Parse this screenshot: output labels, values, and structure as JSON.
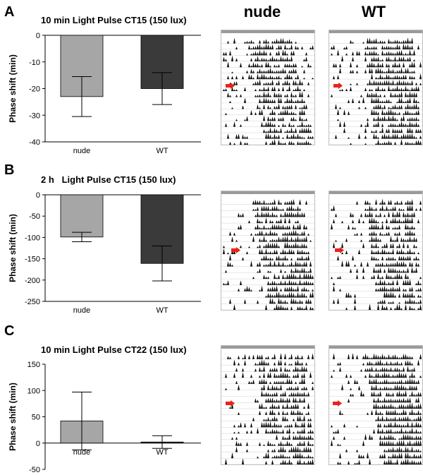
{
  "columns": {
    "nude": "nude",
    "wt": "WT"
  },
  "colors": {
    "nude_bar": "#a6a6a6",
    "wt_bar": "#3a3a3a",
    "arrow": "#e8231b",
    "actogram_bar": "#9a9a9a"
  },
  "chart_data": [
    {
      "panel": "A",
      "type": "bar",
      "title": "10 min Light Pulse CT15 (150 lux)",
      "ylabel": "Phase shift (min)",
      "xlabel": "",
      "categories": [
        "nude",
        "WT"
      ],
      "values": [
        -23,
        -20
      ],
      "errors": [
        7.5,
        6
      ],
      "ylim": [
        -40,
        0
      ],
      "yticks": [
        0,
        -10,
        -20,
        -30,
        -40
      ],
      "grid": false
    },
    {
      "panel": "B",
      "type": "bar",
      "title": "2 h   Light Pulse CT15 (150 lux)",
      "ylabel": "Phase shift (min)",
      "xlabel": "",
      "categories": [
        "nude",
        "WT"
      ],
      "values": [
        -99,
        -161
      ],
      "errors": [
        11,
        41
      ],
      "ylim": [
        -250,
        0
      ],
      "yticks": [
        0,
        -50,
        -100,
        -150,
        -200,
        -250
      ],
      "grid": false
    },
    {
      "panel": "C",
      "type": "bar",
      "title": "10 min Light Pulse CT22 (150 lux)",
      "ylabel": "Phase shift (min)",
      "xlabel": "",
      "categories": [
        "nude",
        "WT"
      ],
      "values": [
        42,
        2
      ],
      "errors": [
        55,
        12
      ],
      "ylim": [
        -50,
        150
      ],
      "yticks": [
        150,
        100,
        50,
        0,
        -50
      ],
      "grid": false
    }
  ]
}
